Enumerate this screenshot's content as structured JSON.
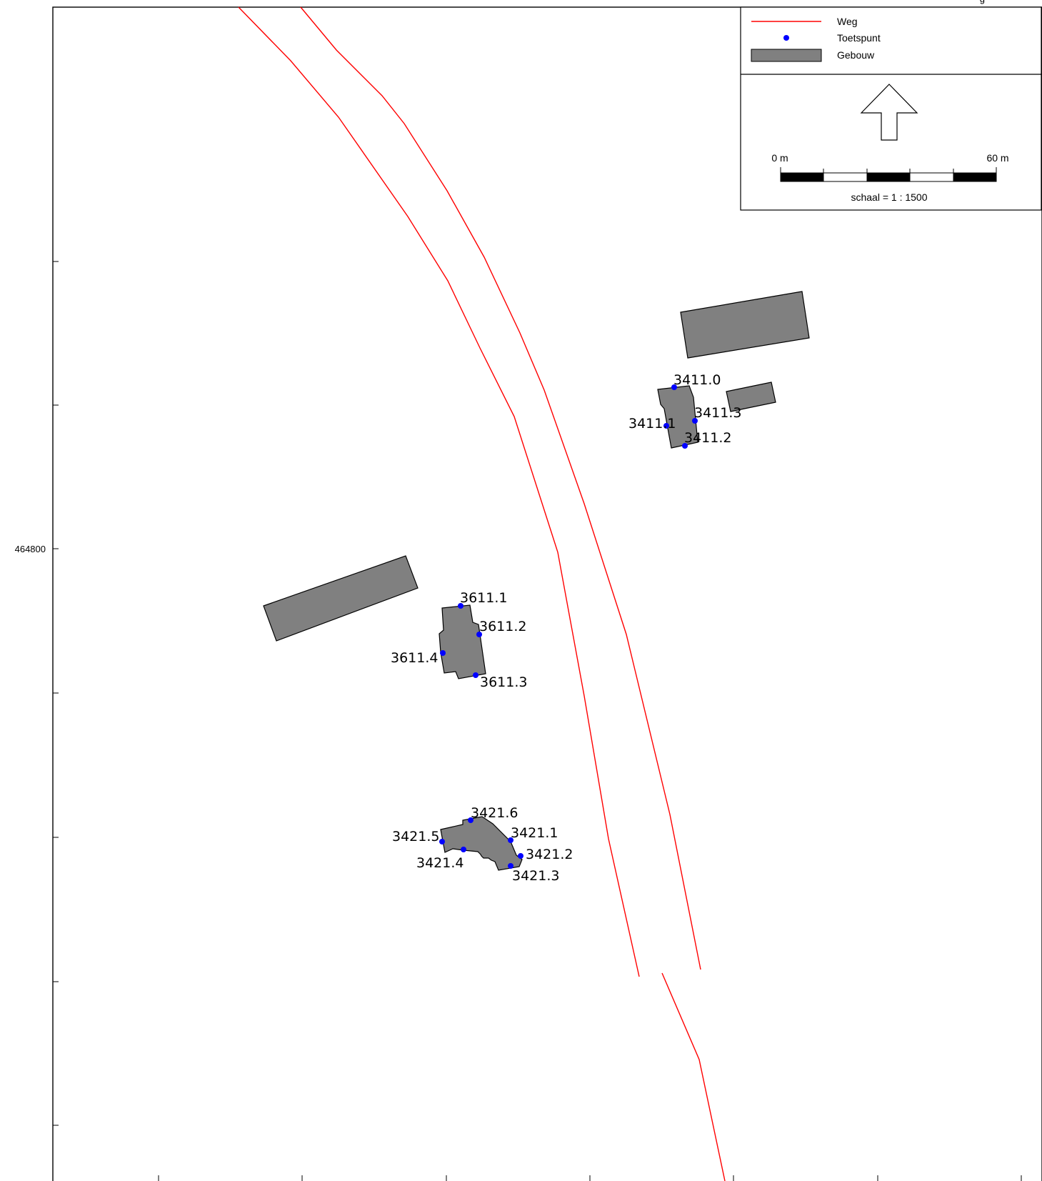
{
  "header": {
    "top_fragment": "g"
  },
  "axes": {
    "y_label": "464800"
  },
  "legend": {
    "items": [
      {
        "label": "Weg",
        "symbol": "line",
        "color": "#ff0000"
      },
      {
        "label": "Toetspunt",
        "symbol": "point",
        "color": "#0000ff"
      },
      {
        "label": "Gebouw",
        "symbol": "polygon",
        "color": "#808080"
      }
    ]
  },
  "scalebar": {
    "start_label": "0 m",
    "end_label": "60 m",
    "scale_text": "schaal = 1 : 1500"
  },
  "colors": {
    "road": "#ff0000",
    "point": "#0000ff",
    "building": "#808080",
    "frame": "#000000"
  },
  "points": [
    {
      "id": "3411.0",
      "label": "3411.0"
    },
    {
      "id": "3411.1",
      "label": "3411.1"
    },
    {
      "id": "3411.2",
      "label": "3411.2"
    },
    {
      "id": "3411.3",
      "label": "3411.3"
    },
    {
      "id": "3611.1",
      "label": "3611.1"
    },
    {
      "id": "3611.2",
      "label": "3611.2"
    },
    {
      "id": "3611.3",
      "label": "3611.3"
    },
    {
      "id": "3611.4",
      "label": "3611.4"
    },
    {
      "id": "3421.1",
      "label": "3421.1"
    },
    {
      "id": "3421.2",
      "label": "3421.2"
    },
    {
      "id": "3421.3",
      "label": "3421.3"
    },
    {
      "id": "3421.4",
      "label": "3421.4"
    },
    {
      "id": "3421.5",
      "label": "3421.5"
    },
    {
      "id": "3421.6",
      "label": "3421.6"
    }
  ]
}
